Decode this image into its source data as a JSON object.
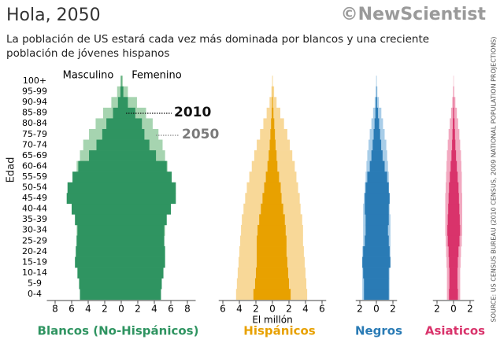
{
  "header": {
    "title": "Hola, 2050",
    "subtitle": "La población de US estará cada vez más dominada por blancos y una creciente población de jóvenes hispanos",
    "logo": "©NewScientist",
    "source": "SOURCE: US CENSUS BUREAU (2010 CENSUS, 2009 NATIONAL POPULATION PROJECTIONS)"
  },
  "chart_data": [
    {
      "type": "pyramid",
      "name": "Blancos (No-Hispánicos)",
      "color": "#2f9461",
      "y_label": "Edad",
      "left_label": "Masculino",
      "right_label": "Femenino",
      "categories": [
        "0-4",
        "5-9",
        "10-14",
        "15-19",
        "20-24",
        "25-29",
        "30-34",
        "35-39",
        "40-44",
        "45-49",
        "50-54",
        "55-59",
        "60-64",
        "65-69",
        "70-74",
        "75-79",
        "80-84",
        "85-89",
        "90-94",
        "95-99",
        "100+"
      ],
      "xlim": [
        -9,
        9
      ],
      "xticks": [
        {
          "value": -8,
          "label": "8"
        },
        {
          "value": -6,
          "label": "6"
        },
        {
          "value": -4,
          "label": "4"
        },
        {
          "value": -2,
          "label": "2"
        },
        0,
        2,
        4,
        6,
        8
      ],
      "series": [
        {
          "name": "2050",
          "color": "#a6d4b0",
          "male": [
            5.0,
            5.0,
            5.1,
            5.2,
            5.3,
            5.4,
            5.4,
            5.4,
            5.4,
            5.4,
            5.5,
            5.5,
            5.4,
            5.0,
            4.6,
            3.9,
            3.1,
            2.2,
            1.2,
            0.5,
            0.1
          ],
          "female": [
            4.8,
            4.8,
            4.9,
            5.0,
            5.1,
            5.2,
            5.3,
            5.3,
            5.4,
            5.4,
            5.5,
            5.6,
            5.6,
            5.3,
            5.0,
            4.5,
            3.8,
            3.0,
            1.9,
            0.8,
            0.2
          ]
        },
        {
          "name": "2010",
          "color": "#2f9461",
          "male": [
            5.0,
            5.1,
            5.3,
            5.6,
            5.5,
            5.4,
            5.3,
            5.6,
            6.0,
            6.6,
            6.5,
            5.9,
            5.2,
            3.9,
            3.0,
            2.3,
            1.8,
            1.0,
            0.4,
            0.1,
            0.02
          ],
          "female": [
            4.8,
            4.9,
            5.1,
            5.3,
            5.3,
            5.2,
            5.2,
            5.5,
            6.0,
            6.6,
            6.6,
            6.1,
            5.5,
            4.2,
            3.4,
            2.8,
            2.5,
            1.7,
            0.8,
            0.25,
            0.05
          ]
        }
      ]
    },
    {
      "type": "pyramid",
      "name": "Hispánicos",
      "color": "#e8a100",
      "x_label": "El millón",
      "xlim": [
        -6.5,
        6.5
      ],
      "xticks": [
        {
          "value": -6,
          "label": "6"
        },
        {
          "value": -4,
          "label": "4"
        },
        {
          "value": -2,
          "label": "2"
        },
        0,
        2,
        4,
        6
      ],
      "series": [
        {
          "color": "#f8d898",
          "male": [
            4.4,
            4.3,
            4.2,
            4.1,
            4.0,
            3.9,
            3.8,
            3.7,
            3.5,
            3.3,
            3.1,
            2.8,
            2.5,
            2.2,
            1.9,
            1.5,
            1.1,
            0.7,
            0.35,
            0.12,
            0.03
          ],
          "female": [
            4.2,
            4.1,
            4.0,
            3.9,
            3.8,
            3.7,
            3.7,
            3.6,
            3.4,
            3.3,
            3.1,
            2.9,
            2.7,
            2.4,
            2.1,
            1.8,
            1.4,
            0.95,
            0.5,
            0.2,
            0.05
          ]
        },
        {
          "color": "#e8a100",
          "male": [
            2.3,
            2.1,
            2.0,
            1.9,
            1.9,
            1.9,
            1.8,
            1.6,
            1.4,
            1.2,
            1.0,
            0.8,
            0.6,
            0.45,
            0.33,
            0.25,
            0.17,
            0.09,
            0.04,
            0.01,
            0.003
          ],
          "female": [
            2.2,
            2.0,
            1.9,
            1.8,
            1.7,
            1.7,
            1.6,
            1.5,
            1.3,
            1.1,
            1.0,
            0.8,
            0.6,
            0.5,
            0.38,
            0.3,
            0.22,
            0.12,
            0.06,
            0.02,
            0.005
          ]
        }
      ]
    },
    {
      "type": "pyramid",
      "name": "Negros",
      "color": "#2a7bb5",
      "xlim": [
        -2.5,
        2.5
      ],
      "xticks": [
        {
          "value": -2,
          "label": "2"
        },
        0,
        2
      ],
      "series": [
        {
          "color": "#a8cde8",
          "male": [
            1.7,
            1.7,
            1.7,
            1.7,
            1.7,
            1.6,
            1.6,
            1.6,
            1.6,
            1.5,
            1.4,
            1.3,
            1.2,
            1.1,
            0.95,
            0.8,
            0.6,
            0.4,
            0.2,
            0.07,
            0.02
          ],
          "female": [
            1.6,
            1.6,
            1.6,
            1.6,
            1.7,
            1.7,
            1.7,
            1.7,
            1.6,
            1.6,
            1.5,
            1.5,
            1.4,
            1.3,
            1.2,
            1.0,
            0.8,
            0.6,
            0.3,
            0.12,
            0.04
          ]
        },
        {
          "color": "#2a7bb5",
          "male": [
            1.5,
            1.5,
            1.6,
            1.7,
            1.6,
            1.4,
            1.3,
            1.3,
            1.4,
            1.4,
            1.3,
            1.1,
            0.8,
            0.6,
            0.45,
            0.33,
            0.22,
            0.12,
            0.05,
            0.015,
            0.004
          ],
          "female": [
            1.5,
            1.5,
            1.5,
            1.7,
            1.6,
            1.5,
            1.4,
            1.5,
            1.5,
            1.6,
            1.5,
            1.3,
            1.0,
            0.75,
            0.58,
            0.45,
            0.33,
            0.2,
            0.09,
            0.03,
            0.008
          ]
        }
      ]
    },
    {
      "type": "pyramid",
      "name": "Asiaticos",
      "color": "#d9336b",
      "xlim": [
        -2.5,
        2.5
      ],
      "xticks": [
        {
          "value": -2,
          "label": "2"
        },
        0,
        2
      ],
      "series": [
        {
          "color": "#f2a9c0",
          "male": [
            0.8,
            0.8,
            0.8,
            0.85,
            0.9,
            0.95,
            1.0,
            1.0,
            1.0,
            1.0,
            0.95,
            0.9,
            0.85,
            0.8,
            0.7,
            0.6,
            0.45,
            0.3,
            0.15,
            0.05,
            0.015
          ],
          "female": [
            0.8,
            0.8,
            0.8,
            0.85,
            0.9,
            1.0,
            1.05,
            1.05,
            1.05,
            1.05,
            1.0,
            1.0,
            0.95,
            0.9,
            0.8,
            0.7,
            0.55,
            0.4,
            0.22,
            0.08,
            0.025
          ]
        },
        {
          "color": "#d9336b",
          "male": [
            0.55,
            0.5,
            0.5,
            0.55,
            0.6,
            0.7,
            0.75,
            0.7,
            0.65,
            0.6,
            0.55,
            0.45,
            0.35,
            0.25,
            0.18,
            0.13,
            0.09,
            0.05,
            0.02,
            0.006,
            0.002
          ],
          "female": [
            0.53,
            0.48,
            0.48,
            0.52,
            0.6,
            0.72,
            0.8,
            0.75,
            0.7,
            0.65,
            0.6,
            0.5,
            0.4,
            0.3,
            0.22,
            0.17,
            0.12,
            0.07,
            0.03,
            0.01,
            0.003
          ]
        }
      ]
    }
  ]
}
